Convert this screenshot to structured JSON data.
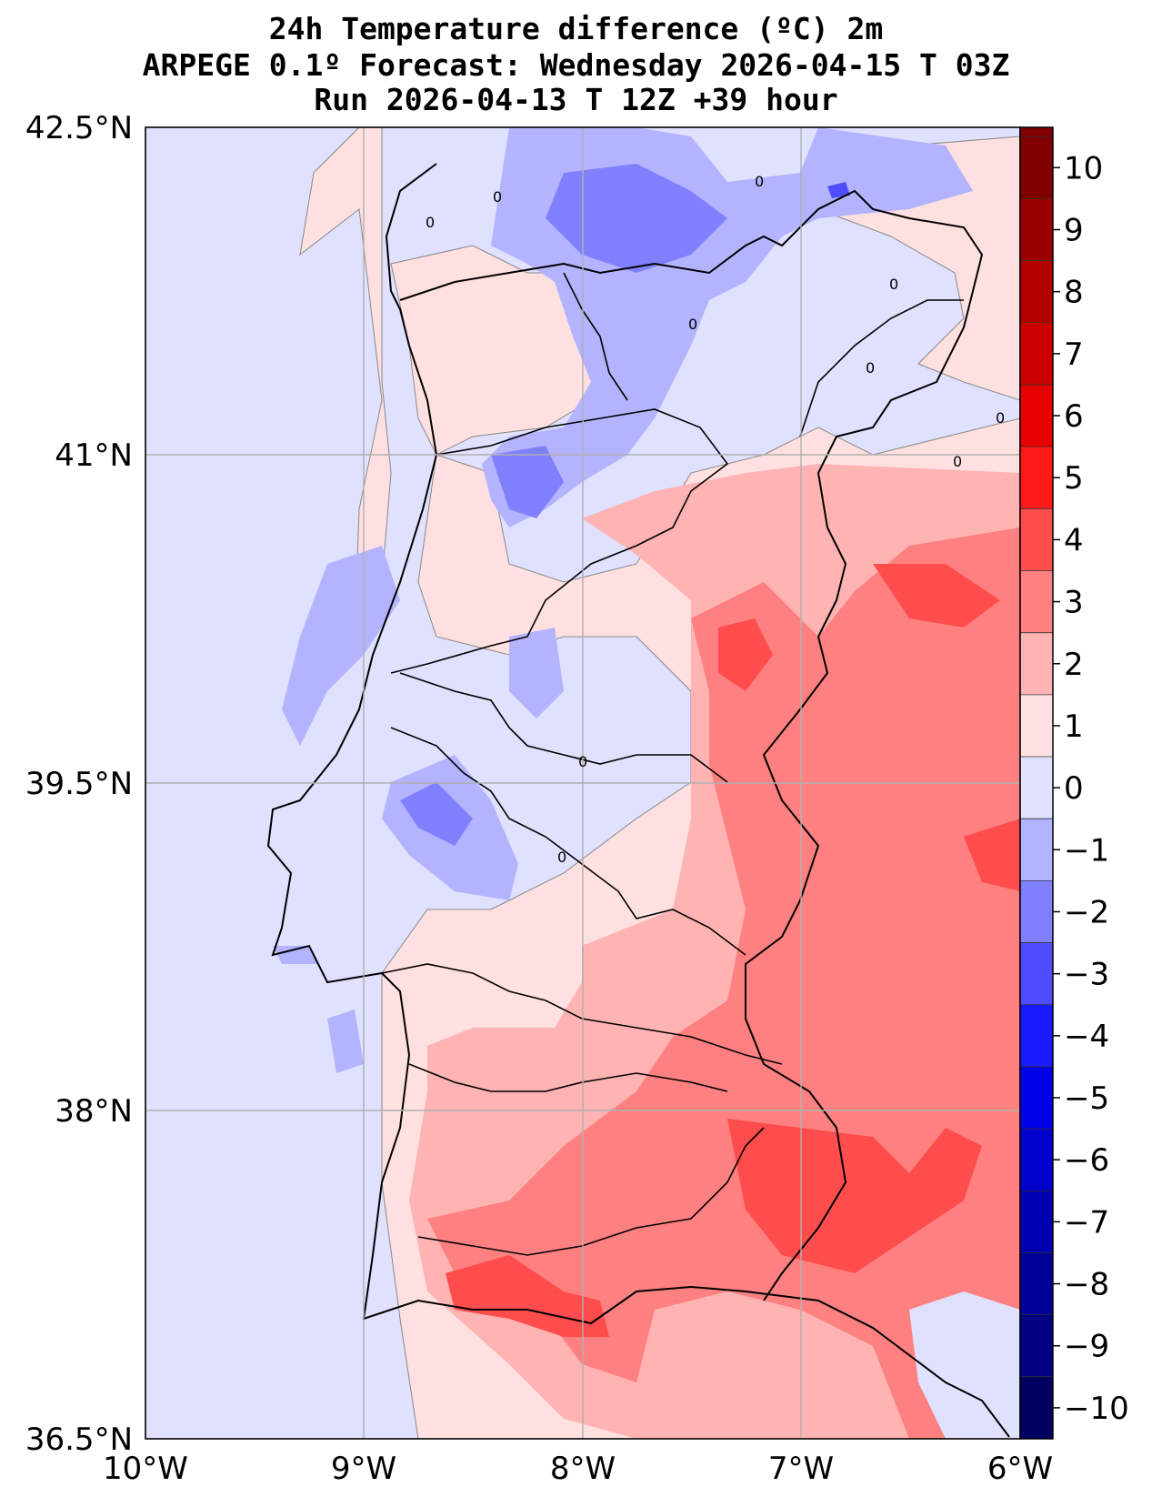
{
  "title": {
    "line1": "24h Temperature difference (ºC) 2m",
    "line2": "ARPEGE 0.1º Forecast: Wednesday 2026-04-15 T 03Z",
    "line3": "Run 2026-04-13 T 12Z +39 hour"
  },
  "axes": {
    "lat_labels": [
      "42.5°N",
      "41°N",
      "39.5°N",
      "38°N",
      "36.5°N"
    ],
    "lon_labels": [
      "10°W",
      "9°W",
      "8°W",
      "7°W",
      "6°W"
    ]
  },
  "colorbar": {
    "tick_labels": [
      "10",
      "9",
      "8",
      "7",
      "6",
      "5",
      "4",
      "3",
      "2",
      "1",
      "0",
      "−1",
      "−2",
      "−3",
      "−4",
      "−5",
      "−6",
      "−7",
      "−8",
      "−9",
      "−10"
    ],
    "colors": [
      "#800000",
      "#990000",
      "#b30000",
      "#cc0000",
      "#e60000",
      "#ff1a1a",
      "#ff4d4d",
      "#ff8080",
      "#ffb3b3",
      "#ffe0e0",
      "#e0e0ff",
      "#b3b3ff",
      "#8080ff",
      "#4d4dff",
      "#1a1aff",
      "#0000e6",
      "#0000cc",
      "#0000b3",
      "#000099",
      "#000080",
      "#000060"
    ]
  },
  "contour_labels": [
    "0",
    "0",
    "0",
    "0",
    "0",
    "0",
    "0",
    "0",
    "0",
    "0"
  ]
}
